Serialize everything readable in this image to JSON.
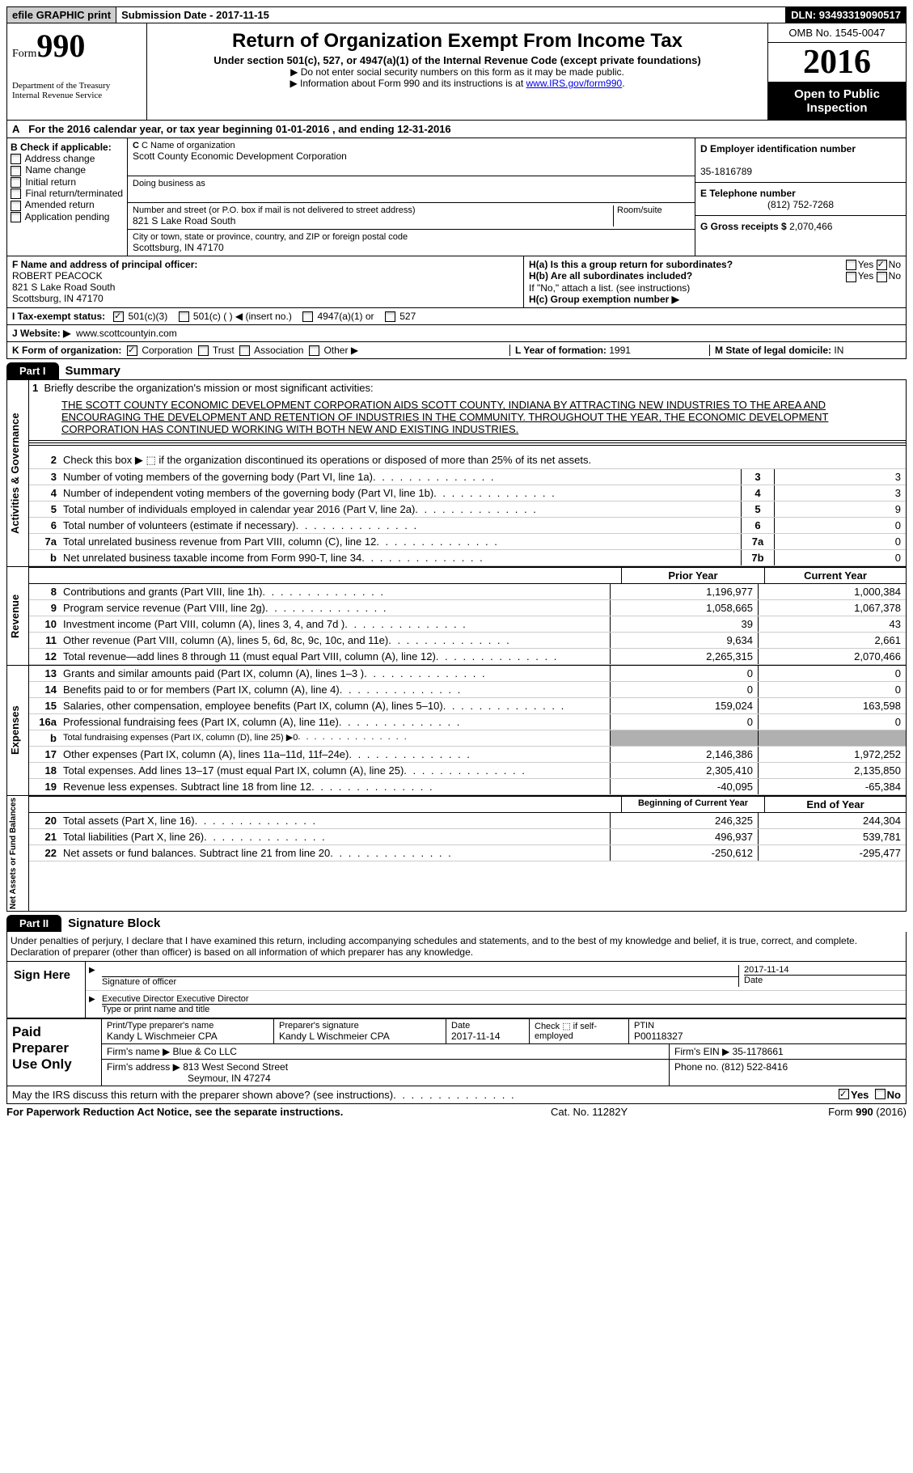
{
  "top": {
    "efile_btn": "efile GRAPHIC print",
    "submission_label": "Submission Date - ",
    "submission_date": "2017-11-15",
    "dln_label": "DLN: ",
    "dln": "93493319090517"
  },
  "header": {
    "form_label": "Form",
    "form_number": "990",
    "dept1": "Department of the Treasury",
    "dept2": "Internal Revenue Service",
    "title": "Return of Organization Exempt From Income Tax",
    "subtitle": "Under section 501(c), 527, or 4947(a)(1) of the Internal Revenue Code (except private foundations)",
    "note1": "▶ Do not enter social security numbers on this form as it may be made public.",
    "note2_pre": "▶ Information about Form 990 and its instructions is at ",
    "note2_link": "www.IRS.gov/form990",
    "omb": "OMB No. 1545-0047",
    "year": "2016",
    "open": "Open to Public Inspection"
  },
  "row_a": {
    "label": "A",
    "text": "For the 2016 calendar year, or tax year beginning 01-01-2016   , and ending 12-31-2016"
  },
  "b": {
    "label": "B Check if applicable:",
    "items": [
      "Address change",
      "Name change",
      "Initial return",
      "Final return/terminated",
      "Amended return",
      "Application pending"
    ]
  },
  "c": {
    "name_lbl": "C Name of organization",
    "name": "Scott County Economic Development Corporation",
    "dba_lbl": "Doing business as",
    "street_lbl": "Number and street (or P.O. box if mail is not delivered to street address)",
    "room_lbl": "Room/suite",
    "street": "821 S Lake Road South",
    "city_lbl": "City or town, state or province, country, and ZIP or foreign postal code",
    "city": "Scottsburg, IN  47170"
  },
  "d": {
    "ein_lbl": "D Employer identification number",
    "ein": "35-1816789",
    "phone_lbl": "E Telephone number",
    "phone": "(812) 752-7268",
    "gross_lbl": "G Gross receipts $ ",
    "gross": "2,070,466"
  },
  "f": {
    "lbl": "F  Name and address of principal officer:",
    "name": "ROBERT PEACOCK",
    "addr1": "821 S Lake Road South",
    "addr2": "Scottsburg, IN  47170"
  },
  "h": {
    "a_lbl": "H(a)  Is this a group return for subordinates?",
    "b_lbl": "H(b)  Are all subordinates included?",
    "b_note": "If \"No,\" attach a list. (see instructions)",
    "c_lbl": "H(c)  Group exemption number ▶",
    "yes": "Yes",
    "no": "No"
  },
  "i": {
    "lbl": "I    Tax-exempt status:",
    "opts": [
      "501(c)(3)",
      "501(c) (  ) ◀ (insert no.)",
      "4947(a)(1) or",
      "527"
    ]
  },
  "j": {
    "lbl": "J   Website: ▶",
    "val": "www.scottcountyin.com"
  },
  "k": {
    "lbl": "K Form of organization:",
    "opts": [
      "Corporation",
      "Trust",
      "Association",
      "Other ▶"
    ],
    "l_lbl": "L Year of formation: ",
    "l_val": "1991",
    "m_lbl": "M State of legal domicile: ",
    "m_val": "IN"
  },
  "part1": {
    "tab": "Part I",
    "title": "Summary"
  },
  "mission": {
    "num": "1",
    "lbl": "Briefly describe the organization's mission or most significant activities:",
    "text": "THE SCOTT COUNTY ECONOMIC DEVELOPMENT CORPORATION AIDS SCOTT COUNTY, INDIANA BY ATTRACTING NEW INDUSTRIES TO THE AREA AND ENCOURAGING THE DEVELOPMENT AND RETENTION OF INDUSTRIES IN THE COMMUNITY. THROUGHOUT THE YEAR, THE ECONOMIC DEVELOPMENT CORPORATION HAS CONTINUED WORKING WITH BOTH NEW AND EXISTING INDUSTRIES."
  },
  "gov_lines": [
    {
      "n": "2",
      "d": "Check this box ▶ ⬚  if the organization discontinued its operations or disposed of more than 25% of its net assets."
    },
    {
      "n": "3",
      "d": "Number of voting members of the governing body (Part VI, line 1a)",
      "box": "3",
      "v": "3"
    },
    {
      "n": "4",
      "d": "Number of independent voting members of the governing body (Part VI, line 1b)",
      "box": "4",
      "v": "3"
    },
    {
      "n": "5",
      "d": "Total number of individuals employed in calendar year 2016 (Part V, line 2a)",
      "box": "5",
      "v": "9"
    },
    {
      "n": "6",
      "d": "Total number of volunteers (estimate if necessary)",
      "box": "6",
      "v": "0"
    },
    {
      "n": "7a",
      "d": "Total unrelated business revenue from Part VIII, column (C), line 12",
      "box": "7a",
      "v": "0"
    },
    {
      "n": "b",
      "d": "Net unrelated business taxable income from Form 990-T, line 34",
      "box": "7b",
      "v": "0"
    }
  ],
  "col_headers": {
    "prior": "Prior Year",
    "current": "Current Year"
  },
  "revenue": [
    {
      "n": "8",
      "d": "Contributions and grants (Part VIII, line 1h)",
      "p": "1,196,977",
      "c": "1,000,384"
    },
    {
      "n": "9",
      "d": "Program service revenue (Part VIII, line 2g)",
      "p": "1,058,665",
      "c": "1,067,378"
    },
    {
      "n": "10",
      "d": "Investment income (Part VIII, column (A), lines 3, 4, and 7d )",
      "p": "39",
      "c": "43"
    },
    {
      "n": "11",
      "d": "Other revenue (Part VIII, column (A), lines 5, 6d, 8c, 9c, 10c, and 11e)",
      "p": "9,634",
      "c": "2,661"
    },
    {
      "n": "12",
      "d": "Total revenue—add lines 8 through 11 (must equal Part VIII, column (A), line 12)",
      "p": "2,265,315",
      "c": "2,070,466"
    }
  ],
  "expenses": [
    {
      "n": "13",
      "d": "Grants and similar amounts paid (Part IX, column (A), lines 1–3 )",
      "p": "0",
      "c": "0"
    },
    {
      "n": "14",
      "d": "Benefits paid to or for members (Part IX, column (A), line 4)",
      "p": "0",
      "c": "0"
    },
    {
      "n": "15",
      "d": "Salaries, other compensation, employee benefits (Part IX, column (A), lines 5–10)",
      "p": "159,024",
      "c": "163,598"
    },
    {
      "n": "16a",
      "d": "Professional fundraising fees (Part IX, column (A), line 11e)",
      "p": "0",
      "c": "0"
    },
    {
      "n": "b",
      "d": "Total fundraising expenses (Part IX, column (D), line 25) ▶0",
      "p": "gray",
      "c": "gray"
    },
    {
      "n": "17",
      "d": "Other expenses (Part IX, column (A), lines 11a–11d, 11f–24e)",
      "p": "2,146,386",
      "c": "1,972,252"
    },
    {
      "n": "18",
      "d": "Total expenses. Add lines 13–17 (must equal Part IX, column (A), line 25)",
      "p": "2,305,410",
      "c": "2,135,850"
    },
    {
      "n": "19",
      "d": "Revenue less expenses. Subtract line 18 from line 12",
      "p": "-40,095",
      "c": "-65,384"
    }
  ],
  "net_headers": {
    "begin": "Beginning of Current Year",
    "end": "End of Year"
  },
  "net": [
    {
      "n": "20",
      "d": "Total assets (Part X, line 16)",
      "p": "246,325",
      "c": "244,304"
    },
    {
      "n": "21",
      "d": "Total liabilities (Part X, line 26)",
      "p": "496,937",
      "c": "539,781"
    },
    {
      "n": "22",
      "d": "Net assets or fund balances. Subtract line 21 from line 20",
      "p": "-250,612",
      "c": "-295,477"
    }
  ],
  "vlabels": {
    "gov": "Activities & Governance",
    "rev": "Revenue",
    "exp": "Expenses",
    "net": "Net Assets or Fund Balances"
  },
  "part2": {
    "tab": "Part II",
    "title": "Signature Block",
    "declaration": "Under penalties of perjury, I declare that I have examined this return, including accompanying schedules and statements, and to the best of my knowledge and belief, it is true, correct, and complete. Declaration of preparer (other than officer) is based on all information of which preparer has any knowledge.",
    "sign_here": "Sign Here",
    "sig_officer_lbl": "Signature of officer",
    "date_lbl": "Date",
    "sig_date": "2017-11-14",
    "name_title": "Executive Director Executive Director",
    "name_title_lbl": "Type or print name and title"
  },
  "preparer": {
    "lbl": "Paid Preparer Use Only",
    "print_lbl": "Print/Type preparer's name",
    "print_name": "Kandy L Wischmeier CPA",
    "sig_lbl": "Preparer's signature",
    "sig_name": "Kandy L Wischmeier CPA",
    "date_lbl": "Date",
    "date": "2017-11-14",
    "check_lbl": "Check ⬚ if self-employed",
    "ptin_lbl": "PTIN",
    "ptin": "P00118327",
    "firm_name_lbl": "Firm's name    ▶ ",
    "firm_name": "Blue & Co LLC",
    "firm_ein_lbl": "Firm's EIN ▶ ",
    "firm_ein": "35-1178661",
    "firm_addr_lbl": "Firm's address ▶ ",
    "firm_addr1": "813 West Second Street",
    "firm_addr2": "Seymour, IN  47274",
    "phone_lbl": "Phone no. ",
    "phone": "(812) 522-8416"
  },
  "discuss": {
    "text": "May the IRS discuss this return with the preparer shown above? (see instructions)",
    "yes": "Yes",
    "no": "No"
  },
  "footer": {
    "left": "For Paperwork Reduction Act Notice, see the separate instructions.",
    "mid": "Cat. No. 11282Y",
    "right": "Form 990 (2016)"
  }
}
